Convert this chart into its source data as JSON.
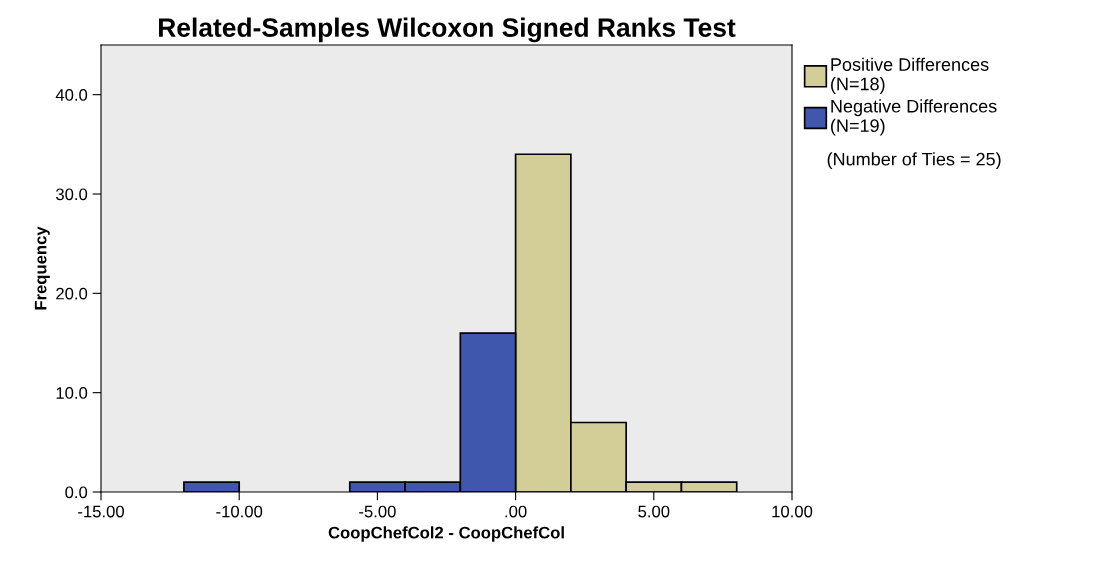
{
  "chart_data": {
    "type": "histogram",
    "title": "Related-Samples Wilcoxon Signed Ranks Test",
    "xlabel": "CoopChefCol2 - CoopChefCol",
    "ylabel": "Frequency",
    "bins": [
      -12,
      -10,
      -8,
      -6,
      -4,
      -2,
      0,
      2,
      4,
      6,
      8
    ],
    "series": [
      {
        "name": "Positive Differences\n(N=18)",
        "color": "#d3cd98",
        "values": [
          null,
          null,
          null,
          null,
          null,
          null,
          34,
          7,
          1,
          1
        ]
      },
      {
        "name": "Negative Differences\n(N=19)",
        "color": "#3f58ad",
        "values": [
          1,
          0,
          0,
          1,
          1,
          16,
          null,
          null,
          null,
          null
        ]
      }
    ],
    "xlim": [
      -15,
      10
    ],
    "xticks": [
      {
        "value": -15,
        "label": "-15.00"
      },
      {
        "value": -10,
        "label": "-10.00"
      },
      {
        "value": -5,
        "label": "-5.00"
      },
      {
        "value": 0,
        "label": ".00"
      },
      {
        "value": 5,
        "label": "5.00"
      },
      {
        "value": 10,
        "label": "10.00"
      }
    ],
    "ylim": [
      0,
      45
    ],
    "yticks": [
      {
        "value": 0,
        "label": "0.0"
      },
      {
        "value": 10,
        "label": "10.0"
      },
      {
        "value": 20,
        "label": "20.0"
      },
      {
        "value": 30,
        "label": "30.0"
      },
      {
        "value": 40,
        "label": "40.0"
      }
    ],
    "legend": "top right",
    "annotations": [
      "(Number of Ties = 25)"
    ]
  }
}
